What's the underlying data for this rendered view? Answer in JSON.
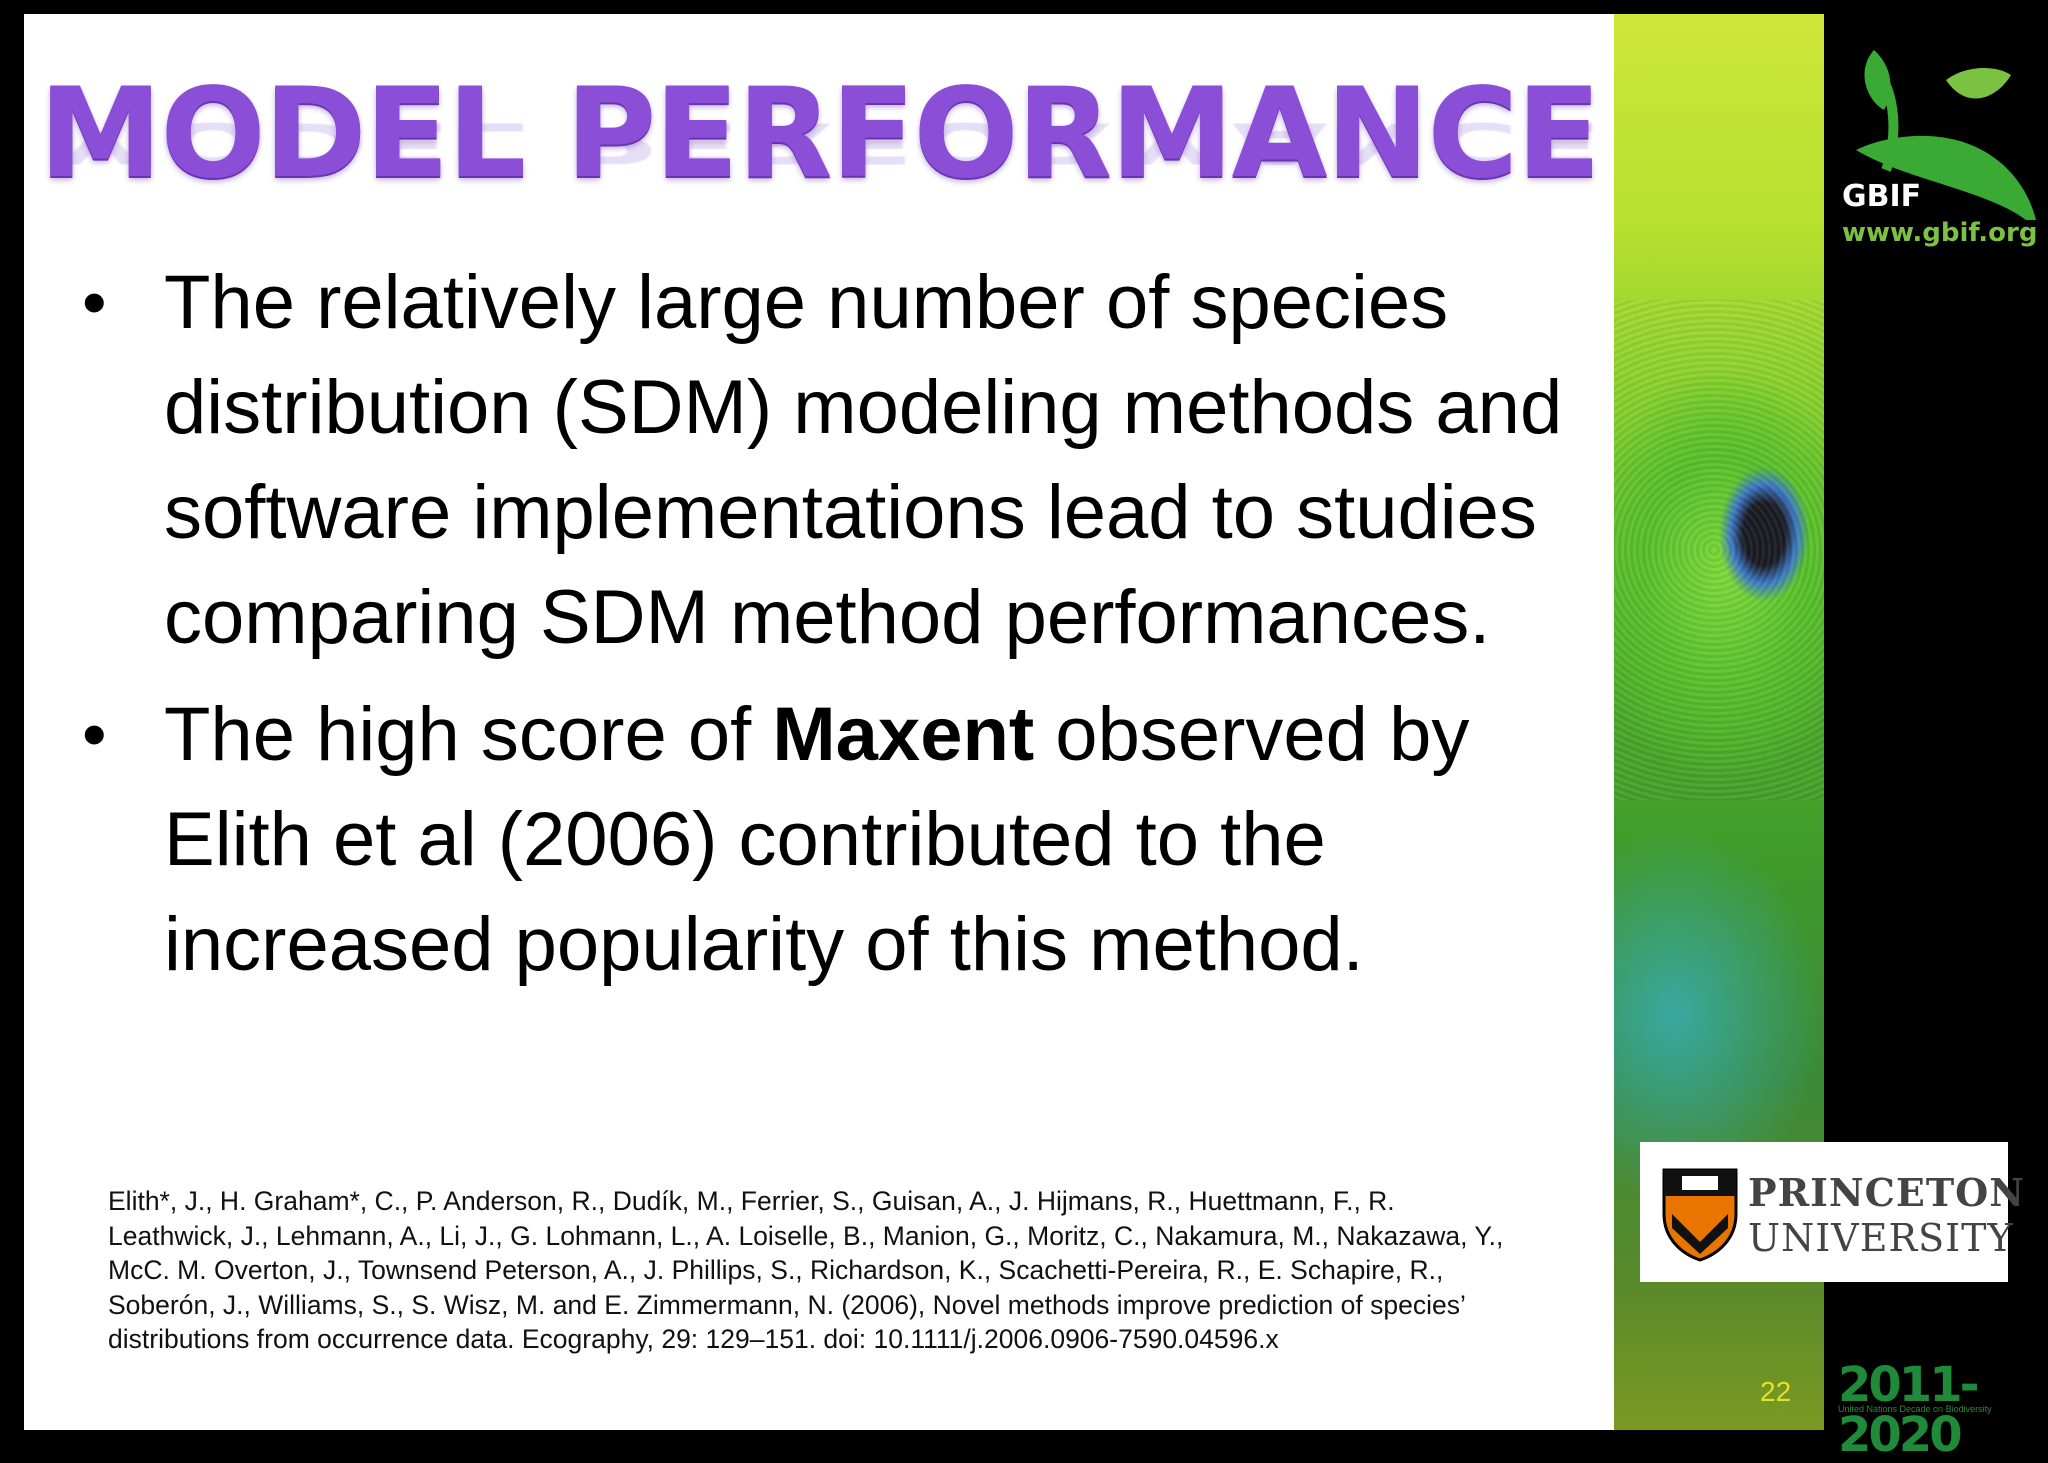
{
  "slide": {
    "title": "MODEL PERFORMANCE",
    "bullets": [
      {
        "text": "The relatively large number of species distribution (SDM) modeling methods and software implementations lead to studies comparing SDM method performances."
      },
      {
        "prefix": "The high score of ",
        "bold": "Maxent",
        "suffix": " observed by Elith et al (2006) contributed to the increased popularity of this method."
      }
    ],
    "reference": "Elith*, J., H. Graham*, C., P. Anderson, R., Dudík, M., Ferrier, S., Guisan, A., J. Hijmans, R., Huettmann, F., R. Leathwick, J., Lehmann, A., Li, J., G. Lohmann, L., A. Loiselle, B., Manion, G., Moritz, C., Nakamura, M., Nakazawa, Y., McC. M. Overton, J., Townsend Peterson, A., J. Phillips, S., Richardson, K., Scachetti-Pereira, R., E. Schapire, R., Soberón, J., Williams, S., S. Wisz, M. and E. Zimmermann, N. (2006), Novel methods improve prediction of species’ distributions from occurrence data. Ecography, 29: 129–151. doi: 10.1111/j.2006.0906-7590.04596.x",
    "page_number": "22"
  },
  "branding": {
    "gbif_name": "GBIF",
    "gbif_url": "www.gbif.org",
    "princeton_line1": "PRINCETON",
    "princeton_line2": "UNIVERSITY",
    "decade_years": "2011-2020",
    "decade_text": "United Nations Decade on Biodiversity"
  },
  "colors": {
    "title": "#8a4fd6",
    "gbif_green": "#7cc242",
    "page_number": "#e8e020"
  }
}
